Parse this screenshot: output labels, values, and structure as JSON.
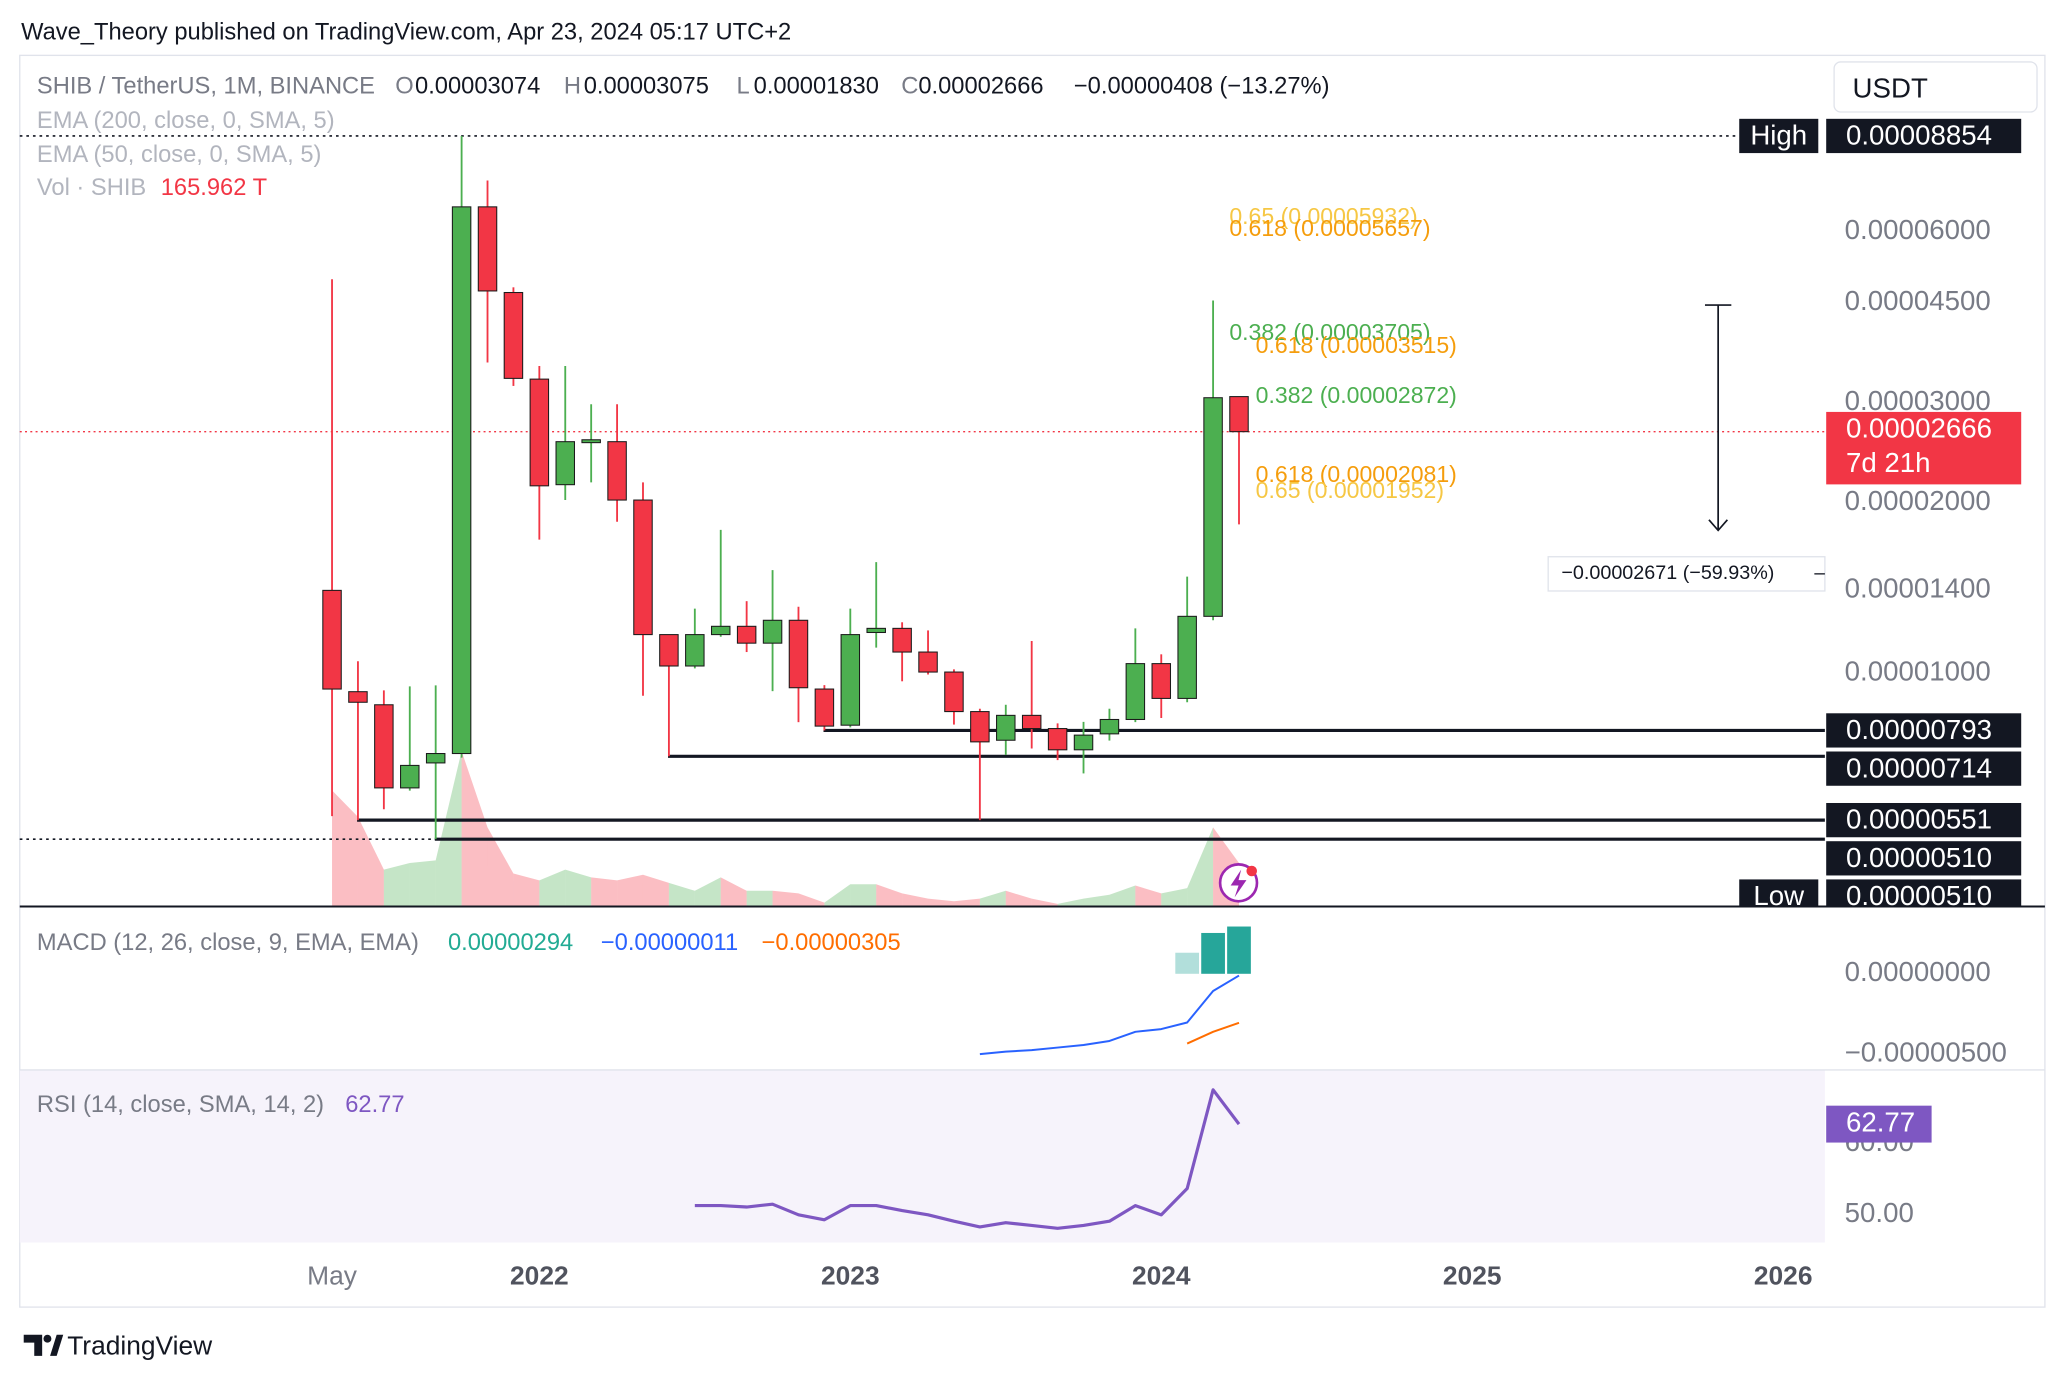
{
  "header": {
    "published": "Wave_Theory published on TradingView.com, Apr 23, 2024 05:17 UTC+2",
    "footer": "TradingView"
  },
  "chart_data": [
    {
      "type": "candlestick",
      "title": "SHIB / TetherUS, 1M, BINANCE",
      "legend": {
        "o_label": "O",
        "open": "0.00003074",
        "h_label": "H",
        "high": "0.00003075",
        "l_label": "L",
        "low": "0.00001830",
        "c_label": "C",
        "close": "0.00002666",
        "change": "−0.00000408 (−13.27%)"
      },
      "indicators": [
        "EMA (200, close, 0, SMA, 5)",
        "EMA (50, close, 0, SMA, 5)"
      ],
      "currency": "USDT",
      "categories": [
        "May",
        null,
        null,
        null,
        null,
        null,
        null,
        null,
        "2022",
        null,
        null,
        null,
        null,
        null,
        null,
        null,
        null,
        null,
        null,
        null,
        "2023",
        null,
        null,
        null,
        null,
        null,
        null,
        null,
        null,
        null,
        null,
        null,
        "2024",
        null,
        null,
        null,
        null,
        null,
        null,
        null,
        null,
        null,
        null,
        null,
        "2025",
        null,
        null,
        null,
        null,
        null,
        null,
        null,
        null,
        null,
        null,
        null,
        "2026",
        null,
        null,
        null
      ],
      "open": [
        1.4e-05,
        9.28e-06,
        8.8e-06,
        6.28e-06,
        6.95e-06,
        7.22e-06,
        6.64e-05,
        4.69e-05,
        3.3e-05,
        2.15e-05,
        2.55e-05,
        2.56e-05,
        2.02e-05,
        1.17e-05,
        1.03e-05,
        1.17e-05,
        1.21e-05,
        1.13e-05,
        1.24e-05,
        9.38e-06,
        8.1e-06,
        1.18e-05,
        1.2e-05,
        1.09e-05,
        1.005e-05,
        8.56e-06,
        7.62e-06,
        8.43e-06,
        7.99e-06,
        7.33e-06,
        7.82e-06,
        8.29e-06,
        1.04e-05,
        9.03e-06,
        1.26e-05,
        3.074e-05,
        null,
        null,
        null,
        null,
        null,
        null,
        null,
        null,
        null,
        null,
        null,
        null,
        null,
        null,
        null,
        null,
        null,
        null,
        null,
        null,
        null,
        null,
        null,
        null
      ],
      "high": [
        4.95e-05,
        1.05e-05,
        9.33e-06,
        9.48e-06,
        9.52e-06,
        8.854e-05,
        7.39e-05,
        4.79e-05,
        3.48e-05,
        3.48e-05,
        2.98e-05,
        2.98e-05,
        2.17e-05,
        1.17e-05,
        1.3e-05,
        1.79e-05,
        1.34e-05,
        1.52e-05,
        1.31e-05,
        9.53e-06,
        1.3e-05,
        1.57e-05,
        1.23e-05,
        1.19e-05,
        1.016e-05,
        8.66e-06,
        8.8e-06,
        1.14e-05,
        8.16e-06,
        8.21e-06,
        8.66e-06,
        1.2e-05,
        1.08e-05,
        1.48e-05,
        4.54e-05,
        3.075e-05,
        null,
        null,
        null,
        null,
        null,
        null,
        null,
        null,
        null,
        null,
        null,
        null,
        null,
        null,
        null,
        null,
        null,
        null,
        null,
        null,
        null,
        null,
        null,
        null
      ],
      "low": [
        5.6e-06,
        5.51e-06,
        5.76e-06,
        6.21e-06,
        5.1e-06,
        7.1e-06,
        3.53e-05,
        3.21e-05,
        1.72e-05,
        2.02e-05,
        2.17e-05,
        1.85e-05,
        9.13e-06,
        7.14e-06,
        1.02e-05,
        1.16e-05,
        1.09e-05,
        9.3e-06,
        8.2e-06,
        7.93e-06,
        8.03e-06,
        1.11e-05,
        9.68e-06,
        9.95e-06,
        8.12e-06,
        5.51e-06,
        7.18e-06,
        7.37e-06,
        7.03e-06,
        6.66e-06,
        7.61e-06,
        8.2e-06,
        8.34e-06,
        8.89e-06,
        1.24e-05,
        1.83e-05,
        null,
        null,
        null,
        null,
        null,
        null,
        null,
        null,
        null,
        null,
        null,
        null,
        null,
        null,
        null,
        null,
        null,
        null,
        null,
        null,
        null,
        null,
        null,
        null
      ],
      "close": [
        9.38e-06,
        8.89e-06,
        6.28e-06,
        6.88e-06,
        7.22e-06,
        6.64e-05,
        4.72e-05,
        3.31e-05,
        2.14e-05,
        2.56e-05,
        2.58e-05,
        2.02e-05,
        1.17e-05,
        1.03e-05,
        1.17e-05,
        1.21e-05,
        1.13e-05,
        1.24e-05,
        9.43e-06,
        8.07e-06,
        1.17e-05,
        1.2e-05,
        1.09e-05,
        1.005e-05,
        8.56e-06,
        7.57e-06,
        8.43e-06,
        7.99e-06,
        7.33e-06,
        7.78e-06,
        8.29e-06,
        1.04e-05,
        9.03e-06,
        1.26e-05,
        3.06e-05,
        2.666e-05,
        null,
        null,
        null,
        null,
        null,
        null,
        null,
        null,
        null,
        null,
        null,
        null,
        null,
        null,
        null,
        null,
        null,
        null,
        null,
        null,
        null,
        null,
        null,
        null
      ],
      "up_color": "#4caf50",
      "down_color": "#f23645",
      "volume": {
        "name": "Vol · SHIB",
        "last_label": "165.962 T",
        "ylim": [
          0,
          3246
        ],
        "values": [
          443,
          342,
          141,
          166,
          176,
          593,
          302,
          126,
          100,
          141,
          111,
          100,
          121,
          90,
          60,
          111,
          60,
          60,
          50,
          15,
          85,
          85,
          50,
          30,
          20,
          30,
          60,
          30,
          10,
          30,
          45,
          80,
          50,
          70,
          302,
          165.962,
          null,
          null,
          null,
          null,
          null,
          null,
          null,
          null,
          null,
          null,
          null,
          null,
          null,
          null,
          null,
          null,
          null,
          null,
          null,
          null,
          null,
          null,
          null,
          null
        ]
      },
      "log_scale": true,
      "grid": false,
      "ylim": [
        3.88e-06,
        0.0001228
      ],
      "yticks": [
        {
          "value": 6e-05,
          "label": "0.00006000"
        },
        {
          "value": 4.5e-05,
          "label": "0.00004500"
        },
        {
          "value": 3e-05,
          "label": "0.00003000"
        },
        {
          "value": 2e-05,
          "label": "0.00002000"
        },
        {
          "value": 1.4e-05,
          "label": "0.00001400"
        },
        {
          "value": 1e-05,
          "label": "0.00001000"
        }
      ],
      "high_marker": {
        "name": "High",
        "value": 8.854e-05,
        "label": "0.00008854"
      },
      "low_marker": {
        "name": "Low",
        "value": 5.1e-06,
        "label": "0.00000510"
      },
      "last_price": {
        "value": 2.666e-05,
        "label": "0.00002666",
        "countdown": "7d 21h",
        "color": "#f23645"
      },
      "levels": [
        {
          "value": 7.93e-06,
          "label": "0.00000793"
        },
        {
          "value": 7.14e-06,
          "label": "0.00000714"
        },
        {
          "value": 5.51e-06,
          "label": "0.00000551"
        },
        {
          "value": 5.1e-06,
          "label": "0.00000510"
        }
      ],
      "fib": [
        {
          "text": "0.65 (0.00005932)",
          "value": 5.932e-05,
          "color": "#f6c744"
        },
        {
          "text": "0.618 (0.00005657)",
          "value": 5.657e-05,
          "color": "#f59d0c"
        },
        {
          "text": "0.382 (0.00003705)",
          "value": 3.705e-05,
          "color": "#4caf50"
        },
        {
          "text": "0.618 (0.00003515)",
          "value": 3.515e-05,
          "color": "#f59d0c"
        },
        {
          "text": "0.382 (0.00002872)",
          "value": 2.872e-05,
          "color": "#4caf50"
        },
        {
          "text": "0.618 (0.00002081)",
          "value": 2.081e-05,
          "color": "#f59d0c"
        },
        {
          "text": "0.65 (0.00001952)",
          "value": 1.952e-05,
          "color": "#f6c744"
        }
      ],
      "measure": {
        "label": "−0.00002671 (−59.93%)",
        "from": 4.457e-05,
        "to": 1.786e-05
      }
    },
    {
      "type": "combo",
      "title": "MACD (12, 26, close, 9, EMA, EMA)",
      "ylim": [
        -5.98e-06,
        4.02e-06
      ],
      "yticks": [
        {
          "value": 0,
          "label": "0.00000000"
        },
        {
          "value": -5e-06,
          "label": "−0.00000500"
        }
      ],
      "series": [
        {
          "kind": "bar",
          "color": "#22ab94",
          "last_label": "0.00000294",
          "colors": [
            null,
            null,
            null,
            null,
            null,
            null,
            null,
            null,
            null,
            null,
            null,
            null,
            null,
            null,
            null,
            null,
            null,
            null,
            null,
            null,
            null,
            null,
            null,
            null,
            null,
            null,
            null,
            null,
            null,
            null,
            null,
            null,
            null,
            "#b2dfdb",
            "#26a69a",
            "#26a69a",
            null,
            null,
            null,
            null,
            null,
            null,
            null,
            null,
            null,
            null,
            null,
            null,
            null,
            null,
            null,
            null,
            null,
            null,
            null,
            null,
            null,
            null,
            null,
            null
          ],
          "values": [
            null,
            null,
            null,
            null,
            null,
            null,
            null,
            null,
            null,
            null,
            null,
            null,
            null,
            null,
            null,
            null,
            null,
            null,
            null,
            null,
            null,
            null,
            null,
            null,
            null,
            null,
            null,
            null,
            null,
            null,
            null,
            null,
            null,
            1.31e-06,
            2.54e-06,
            2.94e-06,
            null,
            null,
            null,
            null,
            null,
            null,
            null,
            null,
            null,
            null,
            null,
            null,
            null,
            null,
            null,
            null,
            null,
            null,
            null,
            null,
            null,
            null,
            null,
            null
          ]
        },
        {
          "kind": "line",
          "color": "#2962ff",
          "last_label": "−0.00000011",
          "values": [
            null,
            null,
            null,
            null,
            null,
            null,
            null,
            null,
            null,
            null,
            null,
            null,
            null,
            null,
            null,
            null,
            null,
            null,
            null,
            null,
            null,
            null,
            null,
            null,
            null,
            -5e-06,
            -4.84e-06,
            -4.75e-06,
            -4.59e-06,
            -4.43e-06,
            -4.18e-06,
            -3.61e-06,
            -3.44e-06,
            -3.03e-06,
            -1.07e-06,
            -1.1e-07,
            null,
            null,
            null,
            null,
            null,
            null,
            null,
            null,
            null,
            null,
            null,
            null,
            null,
            null,
            null,
            null,
            null,
            null,
            null,
            null,
            null,
            null,
            null,
            null
          ]
        },
        {
          "kind": "line",
          "color": "#ff6d00",
          "last_label": "−0.00000305",
          "values": [
            null,
            null,
            null,
            null,
            null,
            null,
            null,
            null,
            null,
            null,
            null,
            null,
            null,
            null,
            null,
            null,
            null,
            null,
            null,
            null,
            null,
            null,
            null,
            null,
            null,
            null,
            null,
            null,
            null,
            null,
            null,
            null,
            null,
            -4.34e-06,
            -3.61e-06,
            -3.05e-06,
            null,
            null,
            null,
            null,
            null,
            null,
            null,
            null,
            null,
            null,
            null,
            null,
            null,
            null,
            null,
            null,
            null,
            null,
            null,
            null,
            null,
            null,
            null,
            null
          ]
        }
      ]
    },
    {
      "type": "line",
      "title": "RSI (14, close, SMA, 14, 2)",
      "color": "#7e57c2",
      "ylim": [
        46.1,
        70.4
      ],
      "yticks": [
        {
          "value": 60,
          "label": "60.00"
        },
        {
          "value": 50,
          "label": "50.00"
        }
      ],
      "values": [
        null,
        null,
        null,
        null,
        null,
        null,
        null,
        null,
        null,
        null,
        null,
        null,
        null,
        null,
        51.3,
        51.3,
        51.1,
        51.5,
        50.0,
        49.3,
        51.3,
        51.3,
        50.6,
        50.0,
        49.1,
        48.3,
        48.9,
        48.5,
        48.1,
        48.5,
        49.1,
        51.3,
        50.0,
        53.7,
        67.6,
        62.77,
        null,
        null,
        null,
        null,
        null,
        null,
        null,
        null,
        null,
        null,
        null,
        null,
        null,
        null,
        null,
        null,
        null,
        null,
        null,
        null,
        null,
        null,
        null,
        null
      ]
    }
  ]
}
